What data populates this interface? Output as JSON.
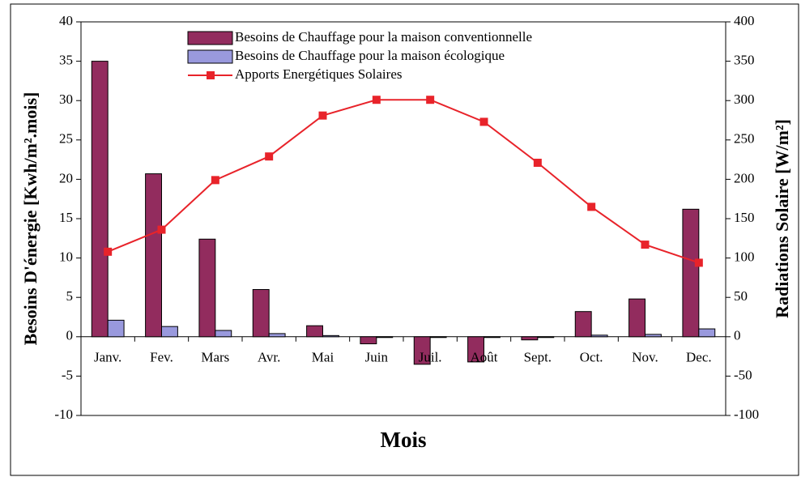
{
  "chart_data": {
    "type": "bar",
    "x_label": "Mois",
    "y_label": "Besoins D'énergie [Kwh/m².mois]",
    "y2_label": "Radiations Solaire [W/m²]",
    "categories": [
      "Janv.",
      "Fev.",
      "Mars",
      "Avr.",
      "Mai",
      "Juin",
      "Juil.",
      "Août",
      "Sept.",
      "Oct.",
      "Nov.",
      "Dec."
    ],
    "series": [
      {
        "name": "Besoins de Chauffage pour la maison conventionnelle",
        "color": "#922c5e",
        "type": "bar",
        "values": [
          35,
          20.7,
          12.4,
          6,
          1.4,
          -0.9,
          -3.5,
          -3.2,
          -0.4,
          3.2,
          4.8,
          16.2
        ]
      },
      {
        "name": "Besoins de Chauffage pour la maison écologique",
        "color": "#9999dd",
        "type": "bar",
        "values": [
          2.1,
          1.3,
          0.8,
          0.4,
          0.15,
          -0.1,
          -0.1,
          -0.1,
          -0.1,
          0.2,
          0.3,
          1.0
        ]
      },
      {
        "name": "Apports Energétiques Solaires",
        "color": "#e8232a",
        "type": "line",
        "axis": "y2",
        "values": [
          108,
          136,
          199,
          229,
          281,
          301,
          301,
          273,
          221,
          165,
          117,
          94
        ]
      }
    ],
    "ylim": [
      -10,
      40
    ],
    "yticks": [
      -10,
      -5,
      0,
      5,
      10,
      15,
      20,
      25,
      30,
      35,
      40
    ],
    "y2lim": [
      -100,
      400
    ],
    "y2ticks": [
      -100,
      -50,
      0,
      50,
      100,
      150,
      200,
      250,
      300,
      350,
      400
    ],
    "legend": "top"
  }
}
